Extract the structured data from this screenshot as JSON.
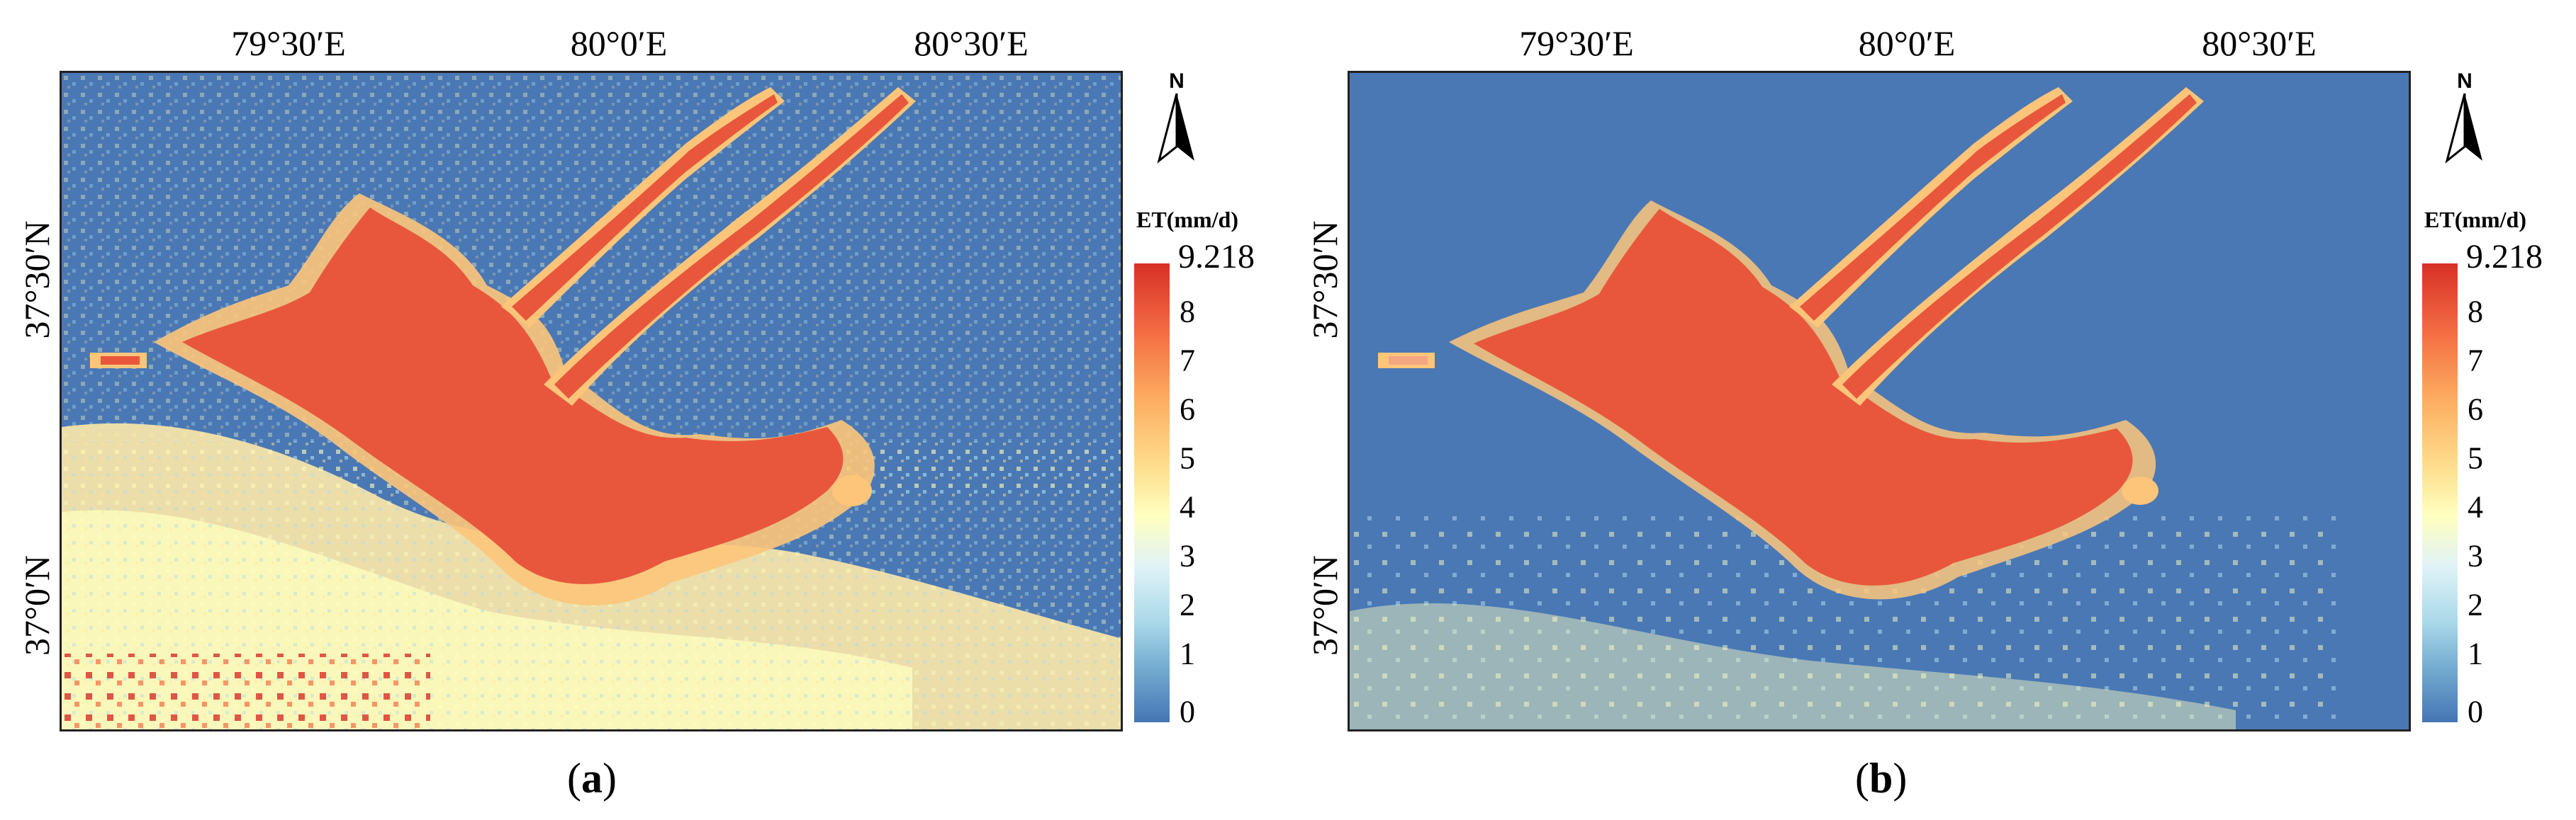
{
  "panels": [
    {
      "id": "a",
      "caption_open": "(",
      "caption_letter": "a",
      "caption_close": ")",
      "lon_labels": [
        "79°30′E",
        "80°0′E",
        "80°30′E"
      ],
      "lat_labels": [
        "37°30′N",
        "37°0′N"
      ],
      "north_label": "N",
      "legend": {
        "title": "ET(mm/d)",
        "max": "9.218",
        "ticks": [
          "8",
          "7",
          "6",
          "5",
          "4",
          "3",
          "2",
          "1",
          "0"
        ]
      }
    },
    {
      "id": "b",
      "caption_open": "(",
      "caption_letter": "b",
      "caption_close": ")",
      "lon_labels": [
        "79°30′E",
        "80°0′E",
        "80°30′E"
      ],
      "lat_labels": [
        "37°30′N",
        "37°0′N"
      ],
      "north_label": "N",
      "legend": {
        "title": "ET(mm/d)",
        "max": "9.218",
        "ticks": [
          "8",
          "7",
          "6",
          "5",
          "4",
          "3",
          "2",
          "1",
          "0"
        ]
      }
    }
  ],
  "colors": {
    "high": "#d73027",
    "upper": "#f46d43",
    "mid": "#fee090",
    "low": "#4575b4",
    "background_water": "#4a78b5"
  }
}
